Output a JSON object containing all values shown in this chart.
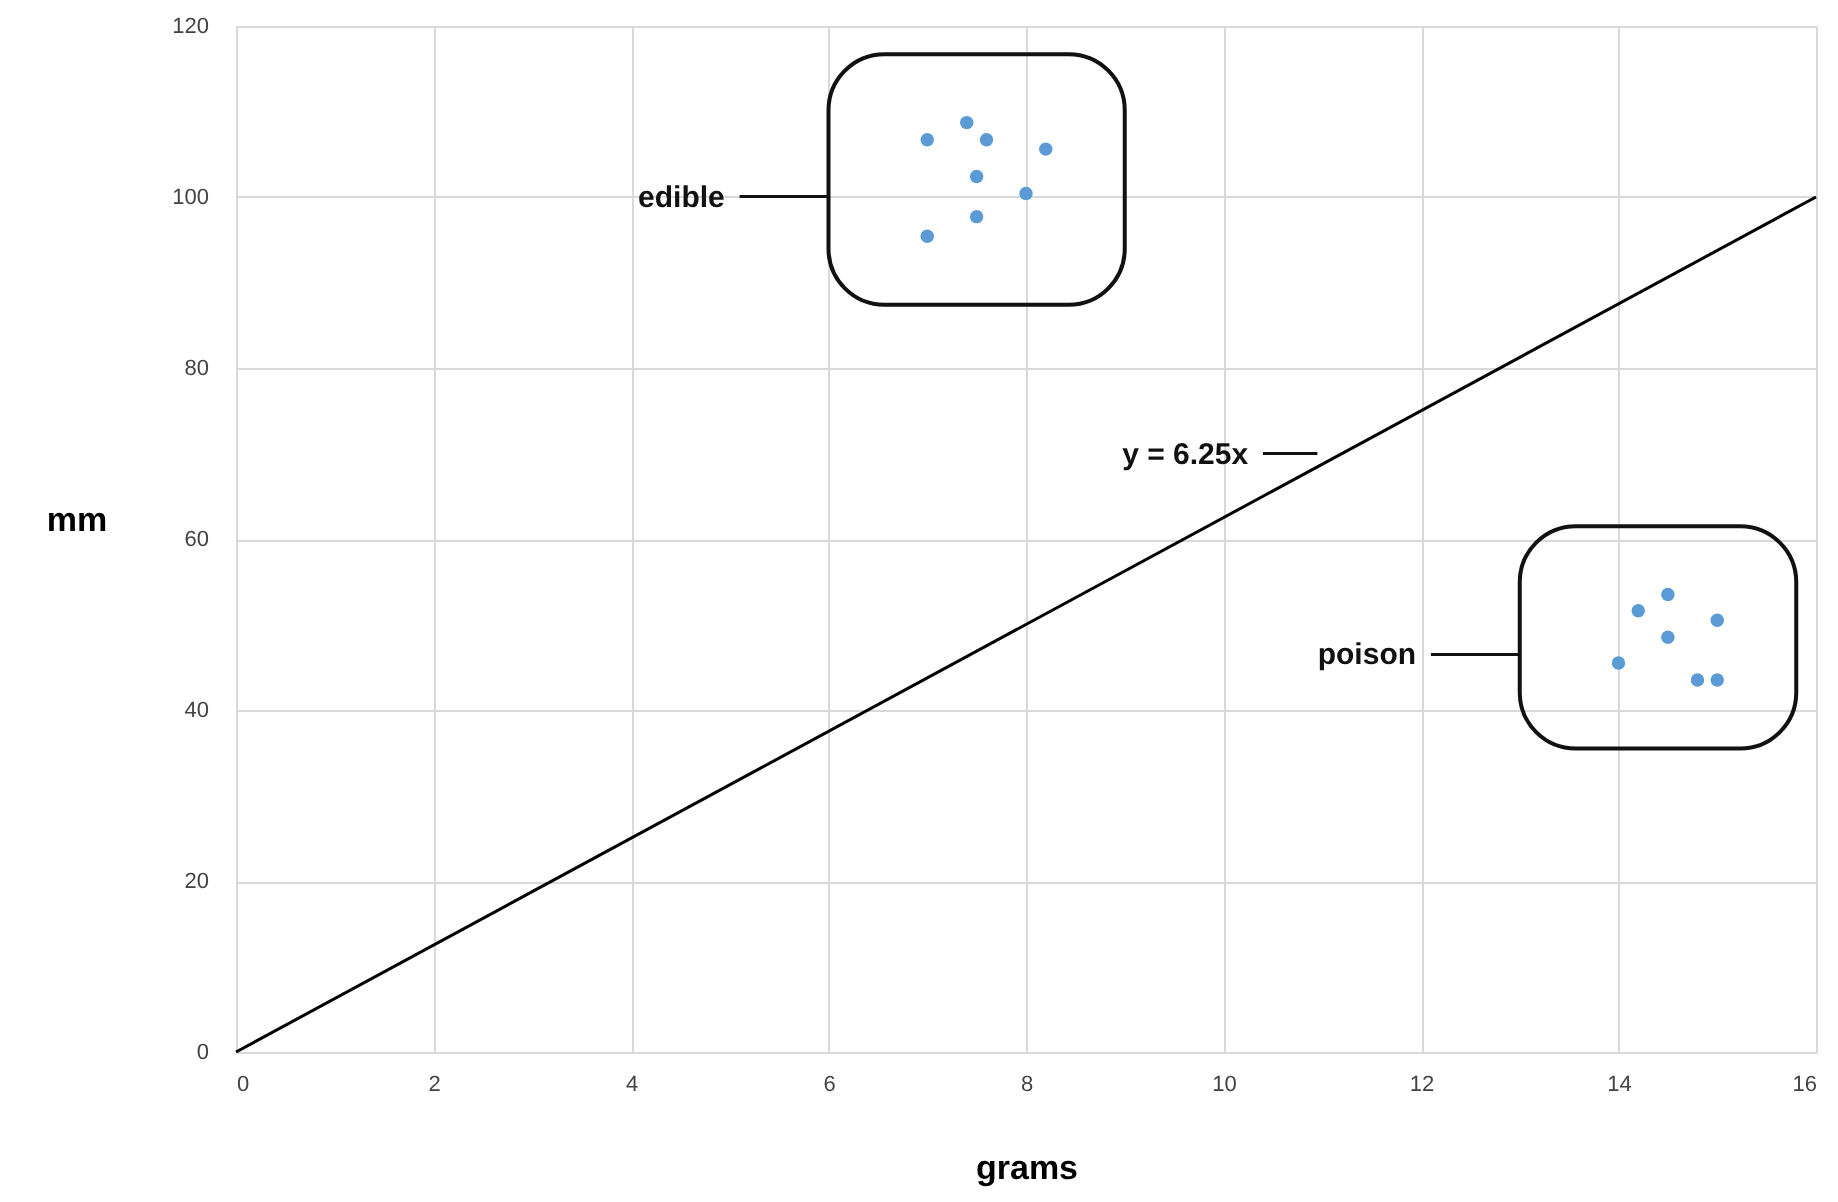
{
  "chart_data": {
    "type": "scatter",
    "xlabel": "grams",
    "ylabel": "mm",
    "xlim": [
      0,
      16
    ],
    "ylim": [
      0,
      120
    ],
    "xticks": [
      0,
      2,
      4,
      6,
      8,
      10,
      12,
      14,
      16
    ],
    "yticks": [
      0,
      20,
      40,
      60,
      80,
      100,
      120
    ],
    "grid": true,
    "marker": "circle",
    "annotations": [
      "edible",
      "poison"
    ],
    "series": [
      {
        "color": "#5b9bd5",
        "x": [
          7.0,
          7.4,
          7.6,
          8.2,
          7.5,
          8.0,
          7.5,
          7.0
        ],
        "values": [
          106.7,
          108.7,
          106.7,
          105.6,
          102.4,
          100.4,
          97.7,
          95.4
        ]
      },
      {
        "color": "#5b9bd5",
        "x": [
          14.5,
          14.2,
          15.0,
          14.5,
          14.0,
          14.8,
          15.0
        ],
        "values": [
          53.5,
          51.6,
          50.5,
          48.5,
          45.5,
          43.5,
          43.5
        ]
      },
      {
        "name": "y = 6.25x",
        "type": "line",
        "color": "#000000",
        "marker": "none",
        "line_style": "solid",
        "x": [
          0,
          16
        ],
        "values": [
          0,
          100
        ]
      }
    ]
  }
}
